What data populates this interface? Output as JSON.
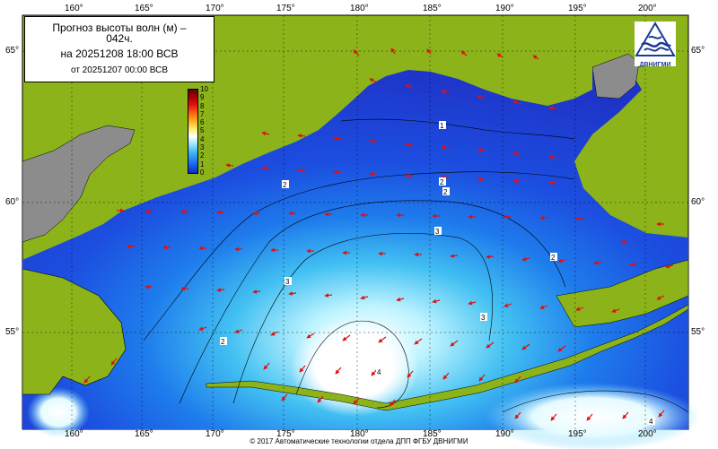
{
  "title": {
    "line1": "Прогноз высоты волн (м) –",
    "line1b": "042ч.",
    "line2": "на 20251208 18:00 ВСВ",
    "line3": "от 20251207 00:00 ВСВ"
  },
  "logo": {
    "text": "ДВНИГМИ"
  },
  "footer": "© 2017 Автоматические технологии отдела ДПП ФГБУ ДВНИГМИ",
  "longitude_labels": [
    "160°",
    "165°",
    "170°",
    "175°",
    "180°",
    "185°",
    "190°",
    "195°",
    "200°"
  ],
  "latitude_labels": [
    "65°",
    "60°",
    "55°"
  ],
  "colorbar": {
    "ticks": [
      "10",
      "9",
      "8",
      "7",
      "6",
      "5",
      "4",
      "3",
      "2",
      "1",
      "0"
    ]
  },
  "contour_labels": [
    "1",
    "2",
    "2",
    "2",
    "3",
    "3",
    "2",
    "3",
    "2",
    "4",
    "4"
  ],
  "colors": {
    "land": "#8cb41a",
    "sea_deep": "#1e3cd2",
    "sea_high": "#ffffff",
    "arrows": "#e01010",
    "greenland_gray": "#8c8c8c"
  }
}
